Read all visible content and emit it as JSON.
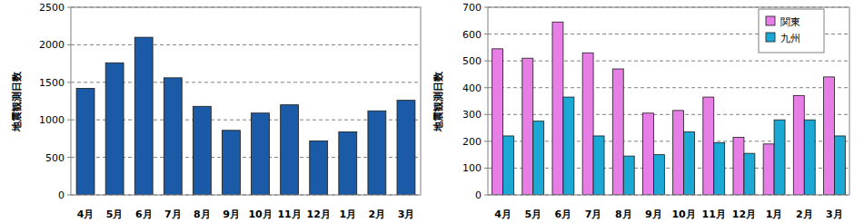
{
  "chart_data": [
    {
      "type": "bar",
      "y_label": "地震観測日数",
      "categories": [
        "4月",
        "5月",
        "6月",
        "7月",
        "8月",
        "9月",
        "10月",
        "11月",
        "12月",
        "1月",
        "2月",
        "3月"
      ],
      "values": [
        1420,
        1760,
        2100,
        1560,
        1180,
        860,
        1090,
        1200,
        720,
        840,
        1120,
        1260
      ],
      "color": "#1a5aa6",
      "ylim": [
        0,
        2500
      ],
      "yticks": [
        0,
        500,
        1000,
        1500,
        2000,
        2500
      ],
      "grid": true
    },
    {
      "type": "bar",
      "y_label": "地震観測日数",
      "categories": [
        "4月",
        "5月",
        "6月",
        "7月",
        "8月",
        "9月",
        "10月",
        "11月",
        "12月",
        "1月",
        "2月",
        "3月"
      ],
      "series": [
        {
          "name": "関東",
          "color": "#e67ee6",
          "values": [
            545,
            510,
            645,
            530,
            470,
            305,
            315,
            365,
            215,
            190,
            370,
            440
          ]
        },
        {
          "name": "九州",
          "color": "#1ca8d4",
          "values": [
            220,
            275,
            365,
            220,
            145,
            150,
            235,
            195,
            155,
            280,
            280,
            220
          ]
        }
      ],
      "ylim": [
        0,
        700
      ],
      "yticks": [
        0,
        100,
        200,
        300,
        400,
        500,
        600,
        700
      ],
      "grid": true,
      "legend": "upper right"
    }
  ]
}
